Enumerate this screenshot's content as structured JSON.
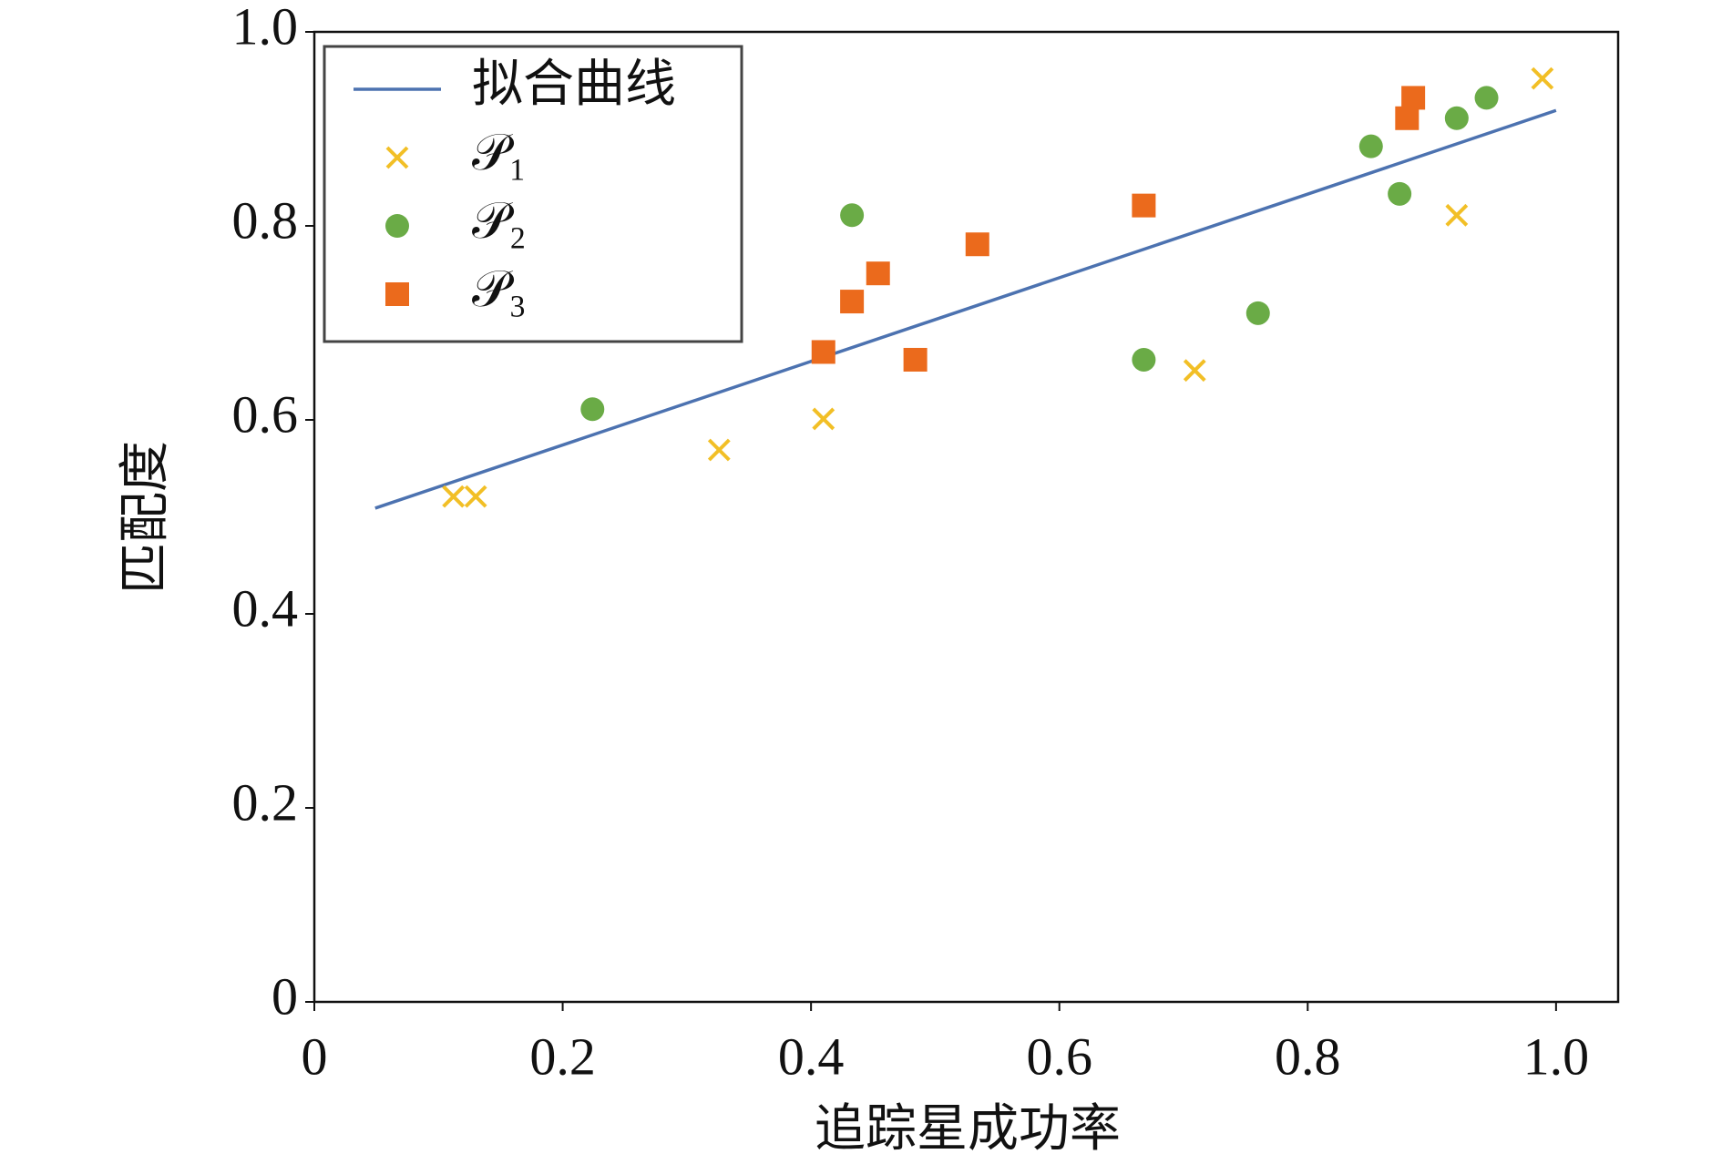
{
  "chart_data": {
    "type": "scatter",
    "xlabel": "追踪星成功率",
    "ylabel": "匹配度",
    "xlim": [
      0,
      1.05
    ],
    "ylim": [
      0,
      1
    ],
    "xticks": [
      0,
      0.2,
      0.4,
      0.6,
      0.8,
      {
        "value": 1,
        "label": "1.0"
      }
    ],
    "yticks": [
      0,
      0.2,
      0.4,
      0.6,
      0.8,
      {
        "value": 1,
        "label": "1.0"
      }
    ],
    "legend": "upper left",
    "series": [
      {
        "name": "拟合曲线",
        "type": "line",
        "color": "#4c72b0",
        "x": [
          0.049,
          1.0
        ],
        "values": [
          0.509,
          0.919
        ]
      },
      {
        "name": "𝒫₁",
        "marker": "x",
        "color": "#f2bf26",
        "x": [
          0.112,
          0.13,
          0.326,
          0.41,
          0.709,
          0.92,
          0.989
        ],
        "values": [
          0.521,
          0.521,
          0.569,
          0.601,
          0.651,
          0.811,
          0.952
        ]
      },
      {
        "name": "𝒫₂",
        "marker": "circle",
        "color": "#6aab46",
        "x": [
          0.224,
          0.433,
          0.668,
          0.76,
          0.851,
          0.874,
          0.92,
          0.944
        ],
        "values": [
          0.611,
          0.811,
          0.662,
          0.71,
          0.882,
          0.833,
          0.911,
          0.932
        ]
      },
      {
        "name": "𝒫₃",
        "marker": "square",
        "color": "#eb6a1c",
        "x": [
          0.41,
          0.433,
          0.454,
          0.484,
          0.534,
          0.668,
          0.88,
          0.885
        ],
        "values": [
          0.67,
          0.722,
          0.751,
          0.662,
          0.781,
          0.821,
          0.911,
          0.932
        ]
      }
    ]
  }
}
